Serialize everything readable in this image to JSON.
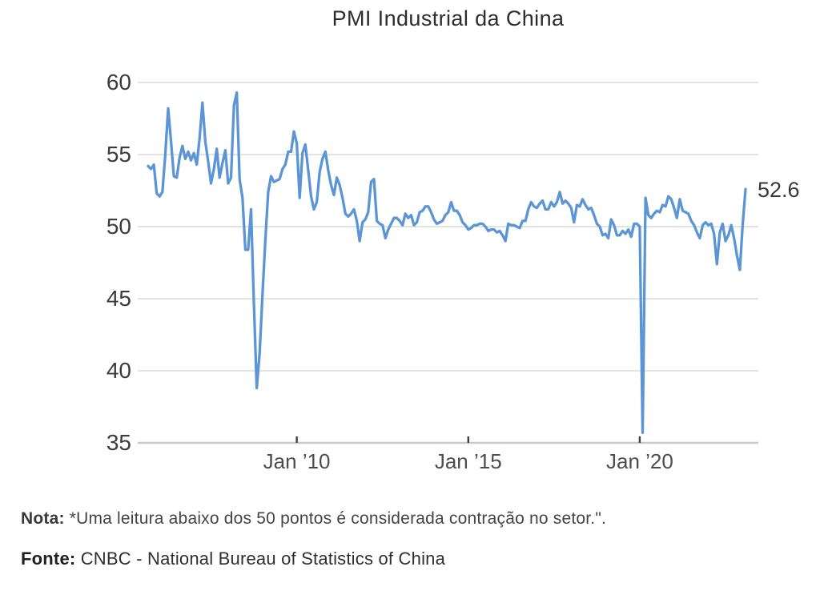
{
  "chart": {
    "title": "PMI Industrial da China"
  },
  "chart_data": {
    "type": "line",
    "title": "PMI Industrial da China",
    "frequency": "monthly",
    "x_start_month": "Sep 2005",
    "x_end_month": "Feb 2023",
    "ylim": [
      35,
      60
    ],
    "yticks": [
      60,
      55,
      50,
      45,
      40,
      35
    ],
    "xticks": [
      {
        "label": "Jan ’10",
        "month_index": 52
      },
      {
        "label": "Jan ’15",
        "month_index": 112
      },
      {
        "label": "Jan ’20",
        "month_index": 172
      }
    ],
    "values": [
      54.2,
      54.0,
      54.3,
      52.3,
      52.1,
      52.4,
      55.0,
      58.2,
      55.9,
      53.5,
      53.4,
      54.8,
      55.6,
      54.7,
      55.2,
      54.6,
      55.1,
      54.3,
      56.1,
      58.6,
      55.9,
      54.5,
      53.0,
      54.0,
      55.4,
      53.4,
      54.4,
      55.3,
      53.0,
      53.4,
      58.4,
      59.3,
      53.3,
      52.0,
      48.4,
      48.4,
      51.2,
      44.6,
      38.8,
      41.2,
      45.3,
      49.0,
      52.4,
      53.5,
      53.1,
      53.2,
      53.3,
      54.0,
      54.3,
      55.2,
      55.2,
      56.6,
      55.8,
      52.0,
      55.1,
      55.7,
      53.9,
      52.1,
      51.2,
      51.7,
      53.8,
      54.7,
      55.2,
      53.9,
      52.9,
      52.2,
      53.4,
      52.9,
      52.0,
      50.9,
      50.7,
      50.9,
      51.2,
      50.4,
      49.0,
      50.3,
      50.5,
      51.0,
      53.1,
      53.3,
      50.4,
      50.2,
      50.1,
      49.2,
      49.8,
      50.2,
      50.6,
      50.6,
      50.4,
      50.1,
      50.9,
      50.6,
      50.8,
      50.1,
      50.3,
      51.0,
      51.1,
      51.4,
      51.4,
      51.0,
      50.5,
      50.2,
      50.3,
      50.4,
      50.8,
      51.0,
      51.7,
      51.1,
      51.1,
      50.8,
      50.3,
      50.1,
      49.8,
      49.9,
      50.1,
      50.1,
      50.2,
      50.2,
      50.0,
      49.7,
      49.8,
      49.8,
      49.6,
      49.7,
      49.4,
      49.0,
      50.2,
      50.1,
      50.1,
      50.0,
      49.9,
      50.4,
      50.4,
      51.2,
      51.7,
      51.4,
      51.3,
      51.6,
      51.8,
      51.2,
      51.2,
      51.7,
      51.4,
      51.7,
      52.4,
      51.6,
      51.8,
      51.6,
      51.3,
      50.3,
      51.5,
      51.4,
      51.9,
      51.5,
      51.2,
      51.3,
      50.8,
      50.2,
      50.0,
      49.4,
      49.5,
      49.2,
      50.5,
      50.1,
      49.4,
      49.4,
      49.7,
      49.5,
      49.8,
      49.3,
      50.2,
      50.2,
      50.0,
      35.7,
      52.0,
      50.8,
      50.6,
      50.9,
      51.1,
      51.0,
      51.5,
      51.4,
      52.1,
      51.9,
      51.3,
      50.6,
      51.9,
      51.1,
      51.0,
      50.9,
      50.4,
      50.1,
      49.6,
      49.2,
      50.1,
      50.3,
      50.1,
      50.2,
      49.5,
      47.4,
      49.6,
      50.2,
      49.0,
      49.4,
      50.1,
      49.2,
      48.0,
      47.0,
      50.1,
      52.6
    ],
    "end_label": "52.6",
    "line_color": "#5b95d5",
    "grid_color": "#dadada",
    "grid": true,
    "legend": "none"
  },
  "notes": {
    "nota_label": "Nota:",
    "nota_text": " *Uma leitura abaixo dos 50 pontos é considerada contração no setor.\".",
    "fonte_label": "Fonte:",
    "fonte_text": " CNBC - National Bureau of Statistics of China"
  }
}
